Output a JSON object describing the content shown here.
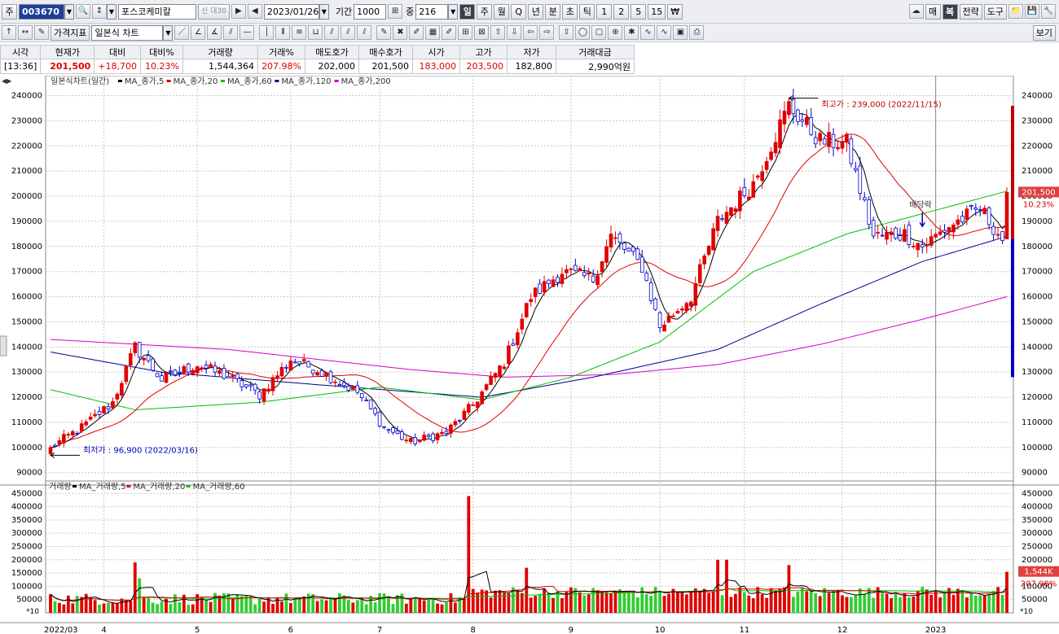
{
  "toolbar1": {
    "type_label": "주",
    "code": "003670",
    "name": "포스코케미칼",
    "badge": "신 대30",
    "date": "2023/01/26",
    "period_label": "기간",
    "period_value": "1000",
    "weight_label": "중",
    "weight_value": "216",
    "periods": [
      "일",
      "주",
      "월",
      "Q",
      "년",
      "분",
      "초",
      "틱",
      "1",
      "2",
      "5",
      "15",
      "₩"
    ],
    "active_period": "일",
    "right_buttons": [
      "매",
      "복",
      "전략",
      "도구"
    ]
  },
  "toolbar2": {
    "indicator_label": "가격지표",
    "chart_type": "일본식 차트",
    "view_label": "보기"
  },
  "quote": {
    "headers": [
      "시각",
      "현재가",
      "대비",
      "대비%",
      "거래량",
      "거래%",
      "매도호가",
      "매수호가",
      "시가",
      "고가",
      "저가",
      "거래대금"
    ],
    "values": [
      "[13:36]",
      "201,500",
      "+18,700",
      "10.23%",
      "1,544,364",
      "207.98%",
      "202,000",
      "201,500",
      "183,000",
      "203,500",
      "182,800",
      "2,990억원"
    ]
  },
  "price_panel": {
    "legend_title": "일본식차트(일간)",
    "legend_items": [
      {
        "label": "MA_종가,5",
        "color": "#000000"
      },
      {
        "label": "MA_종가,20",
        "color": "#e00000"
      },
      {
        "label": "MA_종가,60",
        "color": "#00c000"
      },
      {
        "label": "MA_종가,120",
        "color": "#000090"
      },
      {
        "label": "MA_종가,200",
        "color": "#d000d0"
      }
    ],
    "high_note": "최고가 : 239,000 (2022/11/15)",
    "low_note": "최저가 : 96,900 (2022/03/16)",
    "dividend_note": "배당락",
    "current_price": "201,500",
    "current_pct": "10.23%"
  },
  "volume_panel": {
    "legend_title": "거래량",
    "legend_items": [
      {
        "label": "MA_거래량,5",
        "color": "#000000"
      },
      {
        "label": "MA_거래량,20",
        "color": "#e00000"
      },
      {
        "label": "MA_거래량,60",
        "color": "#00c000"
      }
    ],
    "current_volume": "1,544K",
    "current_pct": "207.98%",
    "unit_label": "*10"
  },
  "colors": {
    "up": "#e00000",
    "down": "#0000c8",
    "vol_up": "#e00000",
    "vol_down": "#33cc33"
  },
  "chart_data": {
    "type": "candlestick",
    "x_tick_labels": [
      "2022/03",
      "4",
      "5",
      "6",
      "7",
      "8",
      "9",
      "10",
      "11",
      "12",
      "2023"
    ],
    "y_ticks_price": [
      90000,
      100000,
      110000,
      120000,
      130000,
      140000,
      150000,
      160000,
      170000,
      180000,
      190000,
      200000,
      210000,
      220000,
      230000,
      240000
    ],
    "y_ticks_volume": [
      50000,
      100000,
      150000,
      200000,
      250000,
      300000,
      350000,
      400000,
      450000
    ],
    "ylim_price": [
      87000,
      246000
    ],
    "ylim_volume": [
      0,
      460000
    ],
    "grid": true,
    "close_anchors": [
      [
        "2022/03/16",
        100000
      ],
      [
        "2022/03/25",
        108000
      ],
      [
        "2022/04/05",
        118000
      ],
      [
        "2022/04/12",
        140000
      ],
      [
        "2022/04/20",
        127000
      ],
      [
        "2022/05/02",
        133000
      ],
      [
        "2022/05/12",
        128000
      ],
      [
        "2022/05/23",
        121000
      ],
      [
        "2022/06/02",
        135000
      ],
      [
        "2022/06/13",
        131000
      ],
      [
        "2022/06/24",
        122000
      ],
      [
        "2022/07/04",
        108000
      ],
      [
        "2022/07/12",
        102000
      ],
      [
        "2022/07/22",
        106000
      ],
      [
        "2022/08/01",
        117000
      ],
      [
        "2022/08/10",
        134000
      ],
      [
        "2022/08/19",
        160000
      ],
      [
        "2022/08/30",
        170000
      ],
      [
        "2022/09/08",
        167000
      ],
      [
        "2022/09/16",
        184000
      ],
      [
        "2022/09/27",
        172000
      ],
      [
        "2022/10/04",
        148000
      ],
      [
        "2022/10/14",
        160000
      ],
      [
        "2022/10/24",
        190000
      ],
      [
        "2022/11/03",
        205000
      ],
      [
        "2022/11/15",
        236000
      ],
      [
        "2022/11/24",
        222000
      ],
      [
        "2022/12/02",
        221000
      ],
      [
        "2022/12/12",
        184000
      ],
      [
        "2022/12/21",
        185000
      ],
      [
        "2022/12/27",
        180000
      ],
      [
        "2023/01/05",
        188000
      ],
      [
        "2023/01/16",
        195000
      ],
      [
        "2023/01/25",
        183000
      ],
      [
        "2023/01/26",
        201500
      ]
    ],
    "ma60_anchors": [
      [
        "2022/03/16",
        123000
      ],
      [
        "2022/04/12",
        115000
      ],
      [
        "2022/05/23",
        118000
      ],
      [
        "2022/07/01",
        124000
      ],
      [
        "2022/08/03",
        119000
      ],
      [
        "2022/09/01",
        128000
      ],
      [
        "2022/10/04",
        142000
      ],
      [
        "2022/11/03",
        170000
      ],
      [
        "2022/12/02",
        185000
      ],
      [
        "2022/12/27",
        193000
      ],
      [
        "2023/01/26",
        202000
      ]
    ],
    "ma120_anchors": [
      [
        "2022/03/16",
        138000
      ],
      [
        "2022/04/20",
        130000
      ],
      [
        "2022/06/13",
        125000
      ],
      [
        "2022/08/03",
        120000
      ],
      [
        "2022/09/08",
        128000
      ],
      [
        "2022/10/24",
        139000
      ],
      [
        "2022/11/24",
        157000
      ],
      [
        "2022/12/27",
        174000
      ],
      [
        "2023/01/26",
        184000
      ]
    ],
    "ma200_anchors": [
      [
        "2022/03/16",
        143000
      ],
      [
        "2022/05/12",
        139000
      ],
      [
        "2022/07/12",
        131000
      ],
      [
        "2022/08/10",
        128000
      ],
      [
        "2022/09/16",
        129000
      ],
      [
        "2022/10/24",
        133000
      ],
      [
        "2022/11/24",
        141000
      ],
      [
        "2022/12/27",
        151000
      ],
      [
        "2023/01/26",
        160000
      ]
    ],
    "volume_spikes": [
      [
        "2022/03/16",
        70000
      ],
      [
        "2022/04/12",
        190000
      ],
      [
        "2022/04/13",
        130000
      ],
      [
        "2022/07/29",
        440000
      ],
      [
        "2022/08/01",
        90000
      ],
      [
        "2022/08/18",
        170000
      ],
      [
        "2022/10/24",
        200000
      ],
      [
        "2022/10/26",
        200000
      ],
      [
        "2022/11/15",
        180000
      ],
      [
        "2023/01/26",
        154436
      ]
    ]
  }
}
